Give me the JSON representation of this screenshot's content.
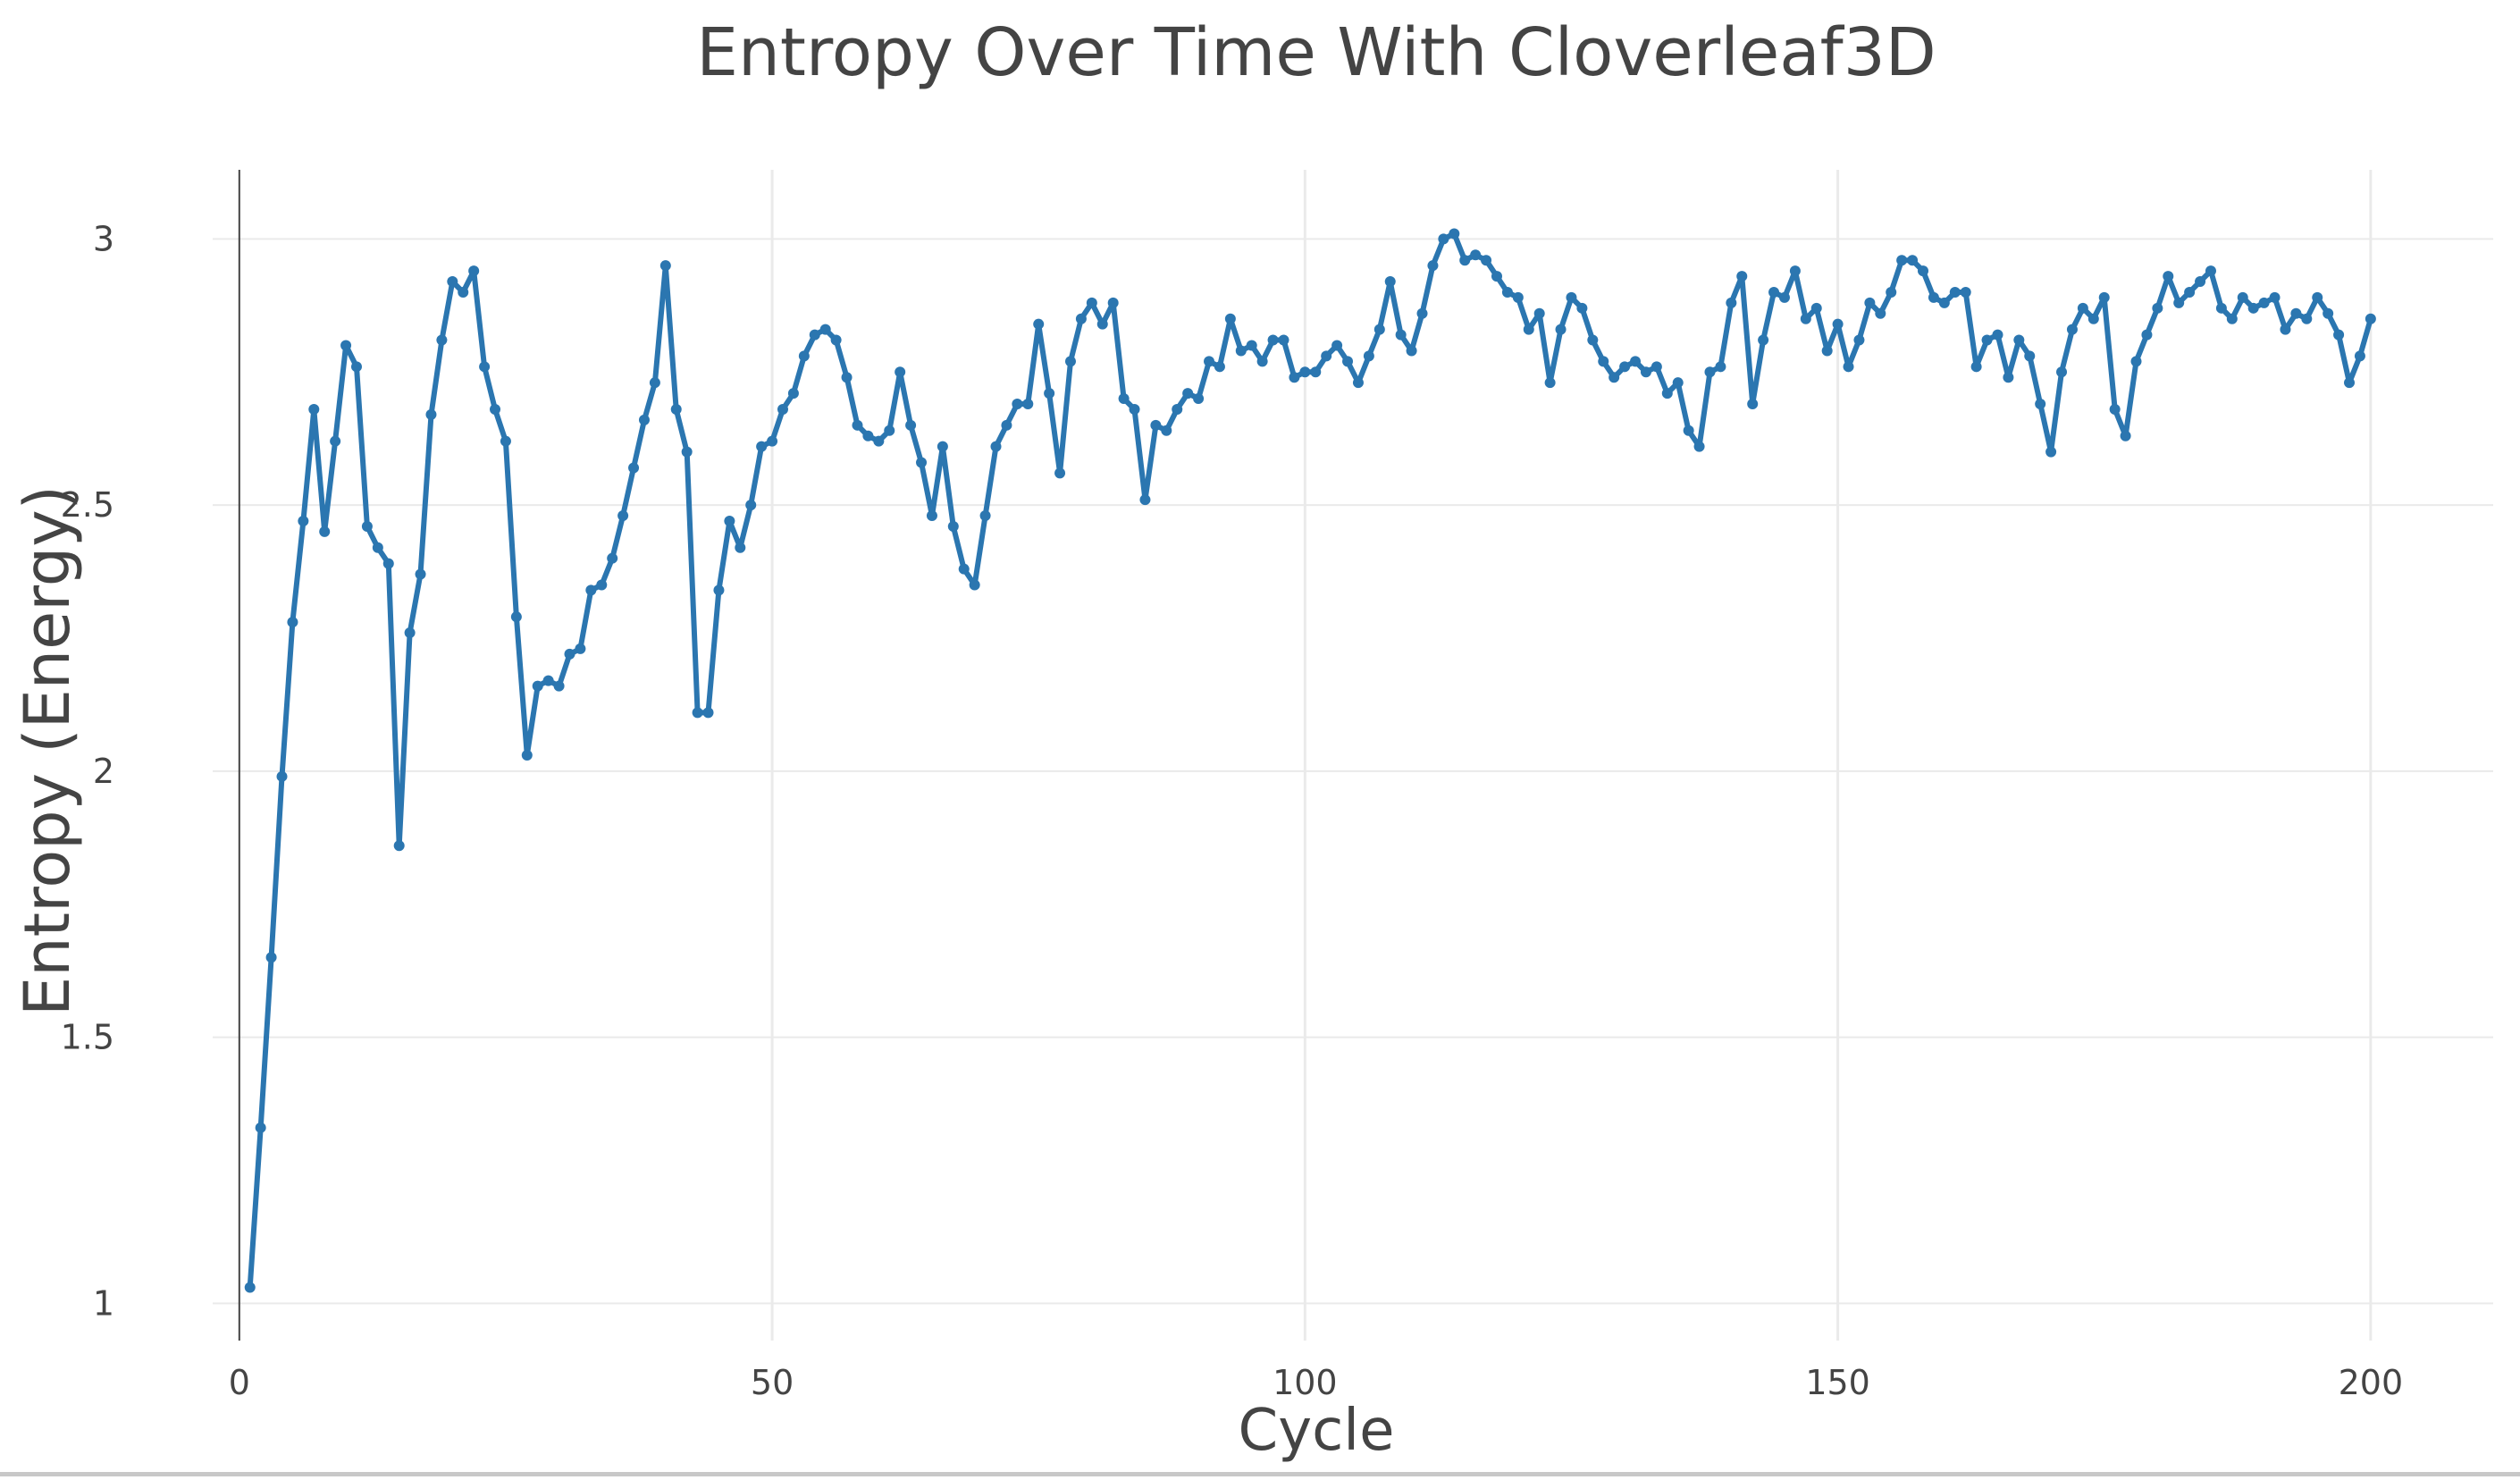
{
  "chart_data": {
    "type": "line",
    "title": "Entropy Over Time With Cloverleaf3D",
    "xlabel": "Cycle",
    "ylabel": "Entropy (Energy)",
    "xlim": [
      -2.5,
      211.5
    ],
    "ylim": [
      0.93,
      3.13
    ],
    "x_ticks": [
      0,
      50,
      100,
      150,
      200
    ],
    "x_tick_labels": [
      "0",
      "50",
      "100",
      "150",
      "200"
    ],
    "y_ticks": [
      1,
      1.5,
      2,
      2.5,
      3
    ],
    "y_tick_labels": [
      "1",
      "1.5",
      "2",
      "2.5",
      "3"
    ],
    "grid": true,
    "legend": "none",
    "colors": {
      "line": "#2b76b0",
      "grid": "#eaeaea",
      "axis": "#444444",
      "text": "#444444"
    },
    "series": [
      {
        "x": [
          1,
          2,
          3,
          4,
          5,
          6,
          7,
          8,
          9,
          10,
          11,
          12,
          13,
          14,
          15,
          16,
          17,
          18,
          19,
          20,
          21,
          22,
          23,
          24,
          25,
          26,
          27,
          28,
          29,
          30,
          31,
          32,
          33,
          34,
          35,
          36,
          37,
          38,
          39,
          40,
          41,
          42,
          43,
          44,
          45,
          46,
          47,
          48,
          49,
          50,
          51,
          52,
          53,
          54,
          55,
          56,
          57,
          58,
          59,
          60,
          61,
          62,
          63,
          64,
          65,
          66,
          67,
          68,
          69,
          70,
          71,
          72,
          73,
          74,
          75,
          76,
          77,
          78,
          79,
          80,
          81,
          82,
          83,
          84,
          85,
          86,
          87,
          88,
          89,
          90,
          91,
          92,
          93,
          94,
          95,
          96,
          97,
          98,
          99,
          100,
          101,
          102,
          103,
          104,
          105,
          106,
          107,
          108,
          109,
          110,
          111,
          112,
          113,
          114,
          115,
          116,
          117,
          118,
          119,
          120,
          121,
          122,
          123,
          124,
          125,
          126,
          127,
          128,
          129,
          130,
          131,
          132,
          133,
          134,
          135,
          136,
          137,
          138,
          139,
          140,
          141,
          142,
          143,
          144,
          145,
          146,
          147,
          148,
          149,
          150,
          151,
          152,
          153,
          154,
          155,
          156,
          157,
          158,
          159,
          160,
          161,
          162,
          163,
          164,
          165,
          166,
          167,
          168,
          169,
          170,
          171,
          172,
          173,
          174,
          175,
          176,
          177,
          178,
          179,
          180,
          181,
          182,
          183,
          184,
          185,
          186,
          187,
          188,
          189,
          190,
          191,
          192,
          193,
          194,
          195,
          196,
          197,
          198,
          199,
          200
        ],
        "y": [
          1.03,
          1.33,
          1.65,
          1.99,
          2.28,
          2.47,
          2.68,
          2.45,
          2.62,
          2.8,
          2.76,
          2.46,
          2.42,
          2.39,
          1.86,
          2.26,
          2.37,
          2.67,
          2.81,
          2.92,
          2.9,
          2.94,
          2.76,
          2.68,
          2.62,
          2.29,
          2.03,
          2.16,
          2.17,
          2.16,
          2.22,
          2.23,
          2.34,
          2.35,
          2.4,
          2.48,
          2.57,
          2.66,
          2.73,
          2.95,
          2.68,
          2.6,
          2.11,
          2.11,
          2.34,
          2.47,
          2.42,
          2.5,
          2.61,
          2.62,
          2.68,
          2.71,
          2.78,
          2.82,
          2.83,
          2.81,
          2.74,
          2.65,
          2.63,
          2.62,
          2.64,
          2.75,
          2.65,
          2.58,
          2.48,
          2.61,
          2.46,
          2.38,
          2.35,
          2.48,
          2.61,
          2.65,
          2.69,
          2.69,
          2.84,
          2.71,
          2.56,
          2.77,
          2.85,
          2.88,
          2.84,
          2.88,
          2.7,
          2.68,
          2.51,
          2.65,
          2.64,
          2.68,
          2.71,
          2.7,
          2.77,
          2.76,
          2.85,
          2.79,
          2.8,
          2.77,
          2.81,
          2.81,
          2.74,
          2.75,
          2.75,
          2.78,
          2.8,
          2.77,
          2.73,
          2.78,
          2.83,
          2.92,
          2.82,
          2.79,
          2.86,
          2.95,
          3.0,
          3.01,
          2.96,
          2.97,
          2.96,
          2.93,
          2.9,
          2.89,
          2.83,
          2.86,
          2.73,
          2.83,
          2.89,
          2.87,
          2.81,
          2.77,
          2.74,
          2.76,
          2.77,
          2.75,
          2.76,
          2.71,
          2.73,
          2.64,
          2.61,
          2.75,
          2.76,
          2.88,
          2.93,
          2.69,
          2.81,
          2.9,
          2.89,
          2.94,
          2.85,
          2.87,
          2.79,
          2.84,
          2.76,
          2.81,
          2.88,
          2.86,
          2.9,
          2.96,
          2.96,
          2.94,
          2.89,
          2.88,
          2.9,
          2.9,
          2.76,
          2.81,
          2.82,
          2.74,
          2.81,
          2.78,
          2.69,
          2.6,
          2.75,
          2.83,
          2.87,
          2.85,
          2.89,
          2.68,
          2.63,
          2.77,
          2.82,
          2.87,
          2.93,
          2.88,
          2.9,
          2.92,
          2.94,
          2.87,
          2.85,
          2.89,
          2.87,
          2.88,
          2.89,
          2.83,
          2.86,
          2.85,
          2.89,
          2.86,
          2.82,
          2.73,
          2.78,
          2.85
        ]
      }
    ]
  }
}
